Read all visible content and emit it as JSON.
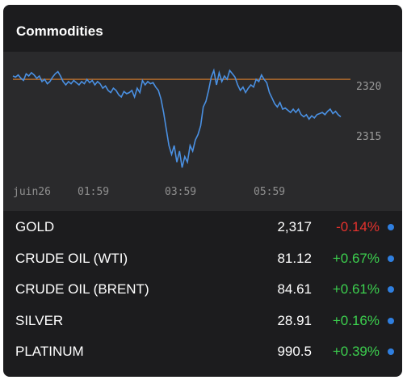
{
  "widget": {
    "title": "Commodities"
  },
  "chart": {
    "y_labels": [
      "2320",
      "2315"
    ],
    "x_labels": [
      "juin26",
      "01:59",
      "03:59",
      "05:59"
    ],
    "line_color": "#4a90e2",
    "ref_line_color": "#b06a2c"
  },
  "chart_data": {
    "type": "line",
    "title": "",
    "xlabel": "",
    "ylabel": "",
    "x_ticks": [
      "juin26",
      "01:59",
      "03:59",
      "05:59"
    ],
    "y_ticks": [
      2320,
      2315
    ],
    "ylim": [
      2311,
      2322.5
    ],
    "reference_line": 2320,
    "series": [
      {
        "values": [
          2320.3,
          2320.2,
          2320.4,
          2320.1,
          2319.9,
          2320.5,
          2320.3,
          2320.6,
          2320.4,
          2320.1,
          2320.3,
          2319.8,
          2320.0,
          2319.6,
          2319.8,
          2320.2,
          2320.5,
          2320.7,
          2320.3,
          2319.8,
          2319.5,
          2319.8,
          2319.6,
          2319.9,
          2319.7,
          2319.5,
          2319.8,
          2319.6,
          2320.0,
          2319.7,
          2319.9,
          2319.5,
          2319.8,
          2319.6,
          2319.2,
          2319.4,
          2319.0,
          2318.8,
          2319.2,
          2319.0,
          2318.6,
          2318.4,
          2318.9,
          2318.7,
          2318.8,
          2319.0,
          2318.4,
          2319.2,
          2318.8,
          2319.9,
          2319.5,
          2319.8,
          2319.6,
          2319.7,
          2319.3,
          2319.0,
          2318.2,
          2317.0,
          2315.5,
          2314.0,
          2313.2,
          2314.0,
          2312.5,
          2313.5,
          2312.0,
          2313.0,
          2312.5,
          2314.0,
          2313.5,
          2314.5,
          2315.0,
          2315.8,
          2317.5,
          2318.0,
          2319.0,
          2320.2,
          2320.8,
          2319.5,
          2320.6,
          2319.8,
          2320.3,
          2320.0,
          2320.8,
          2320.5,
          2320.2,
          2319.5,
          2319.0,
          2319.3,
          2318.8,
          2319.2,
          2319.5,
          2319.3,
          2320.0,
          2319.8,
          2320.4,
          2320.0,
          2319.7,
          2318.8,
          2318.3,
          2317.8,
          2317.5,
          2317.9,
          2317.3,
          2317.4,
          2317.2,
          2317.0,
          2317.3,
          2317.0,
          2317.3,
          2316.8,
          2316.6,
          2316.8,
          2316.4,
          2316.7,
          2316.5,
          2316.8,
          2316.9,
          2317.0,
          2316.8,
          2317.1,
          2317.3,
          2316.9,
          2317.1,
          2316.8,
          2316.6
        ]
      }
    ]
  },
  "rows": [
    {
      "name": "GOLD",
      "price": "2,317",
      "change": "-0.14%",
      "change_color": "#e5322d"
    },
    {
      "name": "CRUDE OIL (WTI)",
      "price": "81.12",
      "change": "+0.67%",
      "change_color": "#3ccf4e"
    },
    {
      "name": "CRUDE OIL (BRENT)",
      "price": "84.61",
      "change": "+0.61%",
      "change_color": "#3ccf4e"
    },
    {
      "name": "SILVER",
      "price": "28.91",
      "change": "+0.16%",
      "change_color": "#3ccf4e"
    },
    {
      "name": "PLATINUM",
      "price": "990.5",
      "change": "+0.39%",
      "change_color": "#3ccf4e"
    }
  ]
}
